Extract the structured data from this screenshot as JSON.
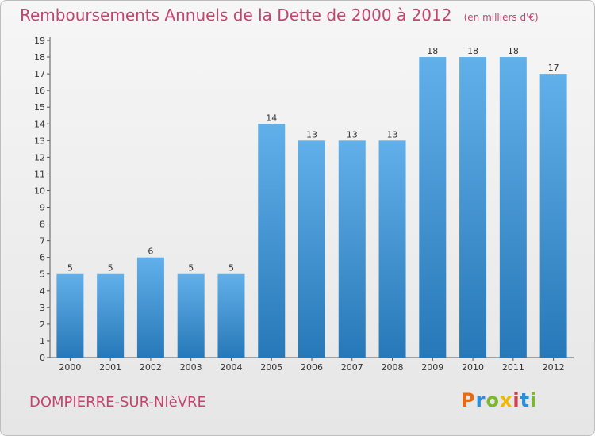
{
  "header": {
    "title": "Remboursements Annuels de la Dette de 2000 à 2012",
    "unit": "(en milliers d'€)"
  },
  "footer": {
    "commune": "DOMPIERRE-SUR-NIèVRE",
    "logo": "Proxiti"
  },
  "colors": {
    "bar_top": "#62b0ea",
    "bar_bottom": "#2778b8",
    "title": "#c2456e"
  },
  "chart_data": {
    "type": "bar",
    "categories": [
      "2000",
      "2001",
      "2002",
      "2003",
      "2004",
      "2005",
      "2006",
      "2007",
      "2008",
      "2009",
      "2010",
      "2011",
      "2012"
    ],
    "values": [
      5,
      5,
      6,
      5,
      5,
      14,
      13,
      13,
      13,
      18,
      18,
      18,
      17
    ],
    "data_labels": [
      "5",
      "5",
      "6",
      "5",
      "5",
      "14",
      "13",
      "13",
      "13",
      "18",
      "18",
      "18",
      "17"
    ],
    "ylim": [
      0,
      19
    ],
    "yticks": [
      0,
      1,
      2,
      3,
      4,
      5,
      6,
      7,
      8,
      9,
      10,
      11,
      12,
      13,
      14,
      15,
      16,
      17,
      18,
      19
    ],
    "grid": false
  }
}
